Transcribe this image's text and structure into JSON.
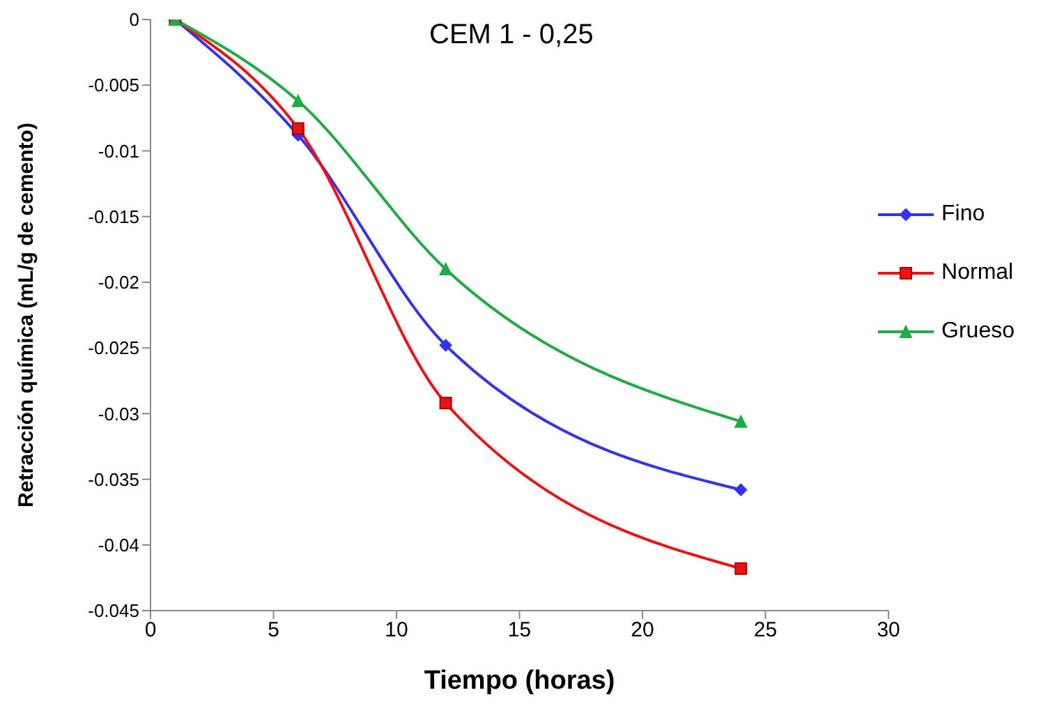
{
  "chart_data": {
    "type": "line",
    "title": "CEM 1 - 0,25",
    "xlabel": "Tiempo (horas)",
    "ylabel": "Retracción química (mL/g de cemento)",
    "x": [
      1,
      6,
      12,
      24
    ],
    "series": [
      {
        "name": "Fino",
        "color": "#3333ee",
        "marker": "diamond",
        "values": [
          0,
          -0.0088,
          -0.0248,
          -0.0358
        ]
      },
      {
        "name": "Normal",
        "color": "#ee1111",
        "marker": "square",
        "values": [
          0,
          -0.0083,
          -0.0292,
          -0.0418
        ]
      },
      {
        "name": "Grueso",
        "color": "#22aa44",
        "marker": "triangle",
        "values": [
          0,
          -0.0062,
          -0.019,
          -0.0306
        ]
      }
    ],
    "xlim": [
      0,
      30
    ],
    "xticks": [
      0,
      5,
      10,
      15,
      20,
      25,
      30
    ],
    "ylim": [
      -0.045,
      0
    ],
    "yticks": [
      0,
      -0.005,
      -0.01,
      -0.015,
      -0.02,
      -0.025,
      -0.03,
      -0.035,
      -0.04,
      -0.045
    ],
    "grid": false,
    "legend": "right"
  }
}
